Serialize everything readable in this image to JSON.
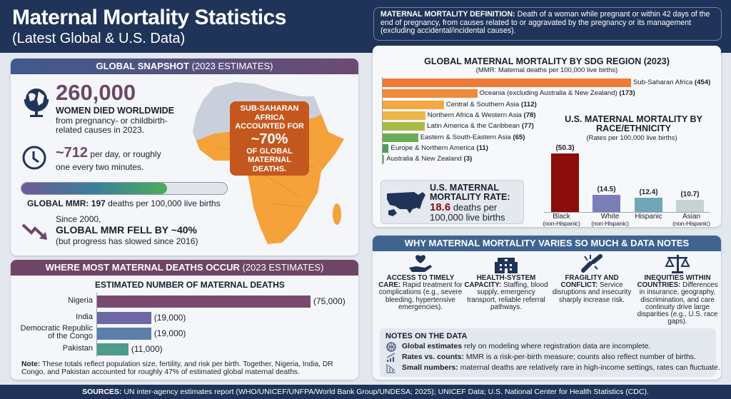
{
  "header": {
    "title": "Maternal Mortality Statistics",
    "subtitle": "(Latest Global & U.S. Data)"
  },
  "definition": {
    "label": "MATERNAL MORTALITY DEFINITION:",
    "text": "Death of a woman while pregnant or within 42 days of the end of pregnancy, from causes related to or aggravated by the pregnancy or its management (excluding accidental/incidental causes)."
  },
  "snapshot": {
    "heading_bold": "GLOBAL SNAPSHOT",
    "heading_rest": "(2023 ESTIMATES)",
    "deaths_number": "260,000",
    "deaths_label": "WOMEN DIED WORLDWIDE",
    "deaths_desc_1": "from pregnancy- or childbirth-",
    "deaths_desc_2": "related causes in 2023.",
    "per_day_number": "~712",
    "per_day_text": "per day, or roughly",
    "per_day_text_2": "one every two minutes.",
    "mmr_bar_fill": 0.71,
    "mmr_label": "GLOBAL MMR:",
    "mmr_value": "197",
    "mmr_unit": "deaths per 100,000 live births",
    "trend_1": "Since 2000,",
    "trend_2": "GLOBAL MMR FELL BY ~40%",
    "trend_3": "(but progress has slowed since 2016)",
    "callout": [
      "SUB-SAHARAN",
      "AFRICA",
      "ACCOUNTED FOR",
      "~70%",
      "OF GLOBAL",
      "MATERNAL",
      "DEATHS."
    ],
    "colors": {
      "map_orange": "#f5a23b",
      "map_grey": "#c9d0db",
      "callout": "#c4571e"
    }
  },
  "deaths_panel": {
    "heading_bold": "WHERE MOST MATERNAL DEATHS OCCUR",
    "heading_rest": "(2023 ESTIMATES)",
    "note_label": "Note:",
    "note_text": "These totals reflect population size, fertility, and risk per birth. Together, Nigeria, India, DR Congo, and Pakistan accounted for roughly 47% of estimated global maternal deaths."
  },
  "us_rate": {
    "line1": "U.S. MATERNAL",
    "line2": "MORTALITY RATE:",
    "value": "18.6",
    "unit1": "deaths per",
    "unit2": "100,000 live births"
  },
  "why": {
    "heading": "WHY MATERNAL MORTALITY VARIES SO MUCH & DATA NOTES",
    "factors": [
      {
        "icon": "heart-hand-icon",
        "title": "ACCESS TO TIMELY CARE:",
        "text": "Rapid treatment for complications (e.g., severe bleeding, hypertensive emergencies)."
      },
      {
        "icon": "hospital-icon",
        "title": "HEALTH-SYSTEM CAPACITY:",
        "text": "Staffing, blood supply, emergency transport, reliable referral pathways."
      },
      {
        "icon": "broken-chain-icon",
        "title": "FRAGILITY AND CONFLICT:",
        "text": "Service disruptions and insecurity sharply increase risk."
      },
      {
        "icon": "scales-icon",
        "title": "INEQUITIES WITHIN COUNTRIES:",
        "text": "Differences in insurance, geography, discrimination, and care continuity drive large disparities (e.g., U.S. race gaps)."
      }
    ],
    "notes_title": "NOTES ON THE DATA",
    "notes": [
      {
        "icon": "globe-icon",
        "bold": "Global estimates",
        "text": "rely on modeling where registration data are incomplete."
      },
      {
        "icon": "chart-up-icon",
        "bold": "Rates vs. counts:",
        "text": "MMR is a risk-per-birth measure; counts also reflect number of births."
      },
      {
        "icon": "chart-down-icon",
        "bold": "Small numbers:",
        "text": "maternal deaths are relatively rare in high-income settings, rates can fluctuate."
      }
    ]
  },
  "footer": {
    "label": "SOURCES:",
    "text": "UN inter-agency estimates report (WHO/UNICEF/UNFPA/World Bank Group/UNDESA; 2025); UNICEF Data; U.S. National Center for Health Statistics (CDC)."
  },
  "chart_data": [
    {
      "type": "bar",
      "orientation": "horizontal",
      "title": "GLOBAL MATERNAL MORTALITY BY SDG REGION (2023)",
      "subtitle": "(MMR: Maternal deaths per 100,000 live births)",
      "categories": [
        "Sub-Saharan Africa",
        "Oceania (excluding Australia & New Zealand)",
        "Central & Southern Asia",
        "Northern Africa & Western Asia",
        "Latin America & the Caribbean",
        "Eastern & South-Eastern Asia",
        "Europe & Northern America",
        "Australia & New Zealand"
      ],
      "values": [
        454,
        173,
        112,
        78,
        77,
        65,
        11,
        3
      ],
      "labels": [
        "(454)",
        "(173)",
        "(112)",
        "(78)",
        "(77)",
        "(65)",
        "(11)",
        "(3)"
      ],
      "colors": [
        "#ee7a35",
        "#f08a3c",
        "#f4a742",
        "#ecb64a",
        "#a9bb45",
        "#6bab55",
        "#4e9e56",
        "#86a58d"
      ]
    },
    {
      "type": "bar",
      "orientation": "vertical",
      "title": "U.S. MATERNAL MORTALITY BY RACE/ETHNICITY",
      "subtitle": "(Rates per 100,000 live births)",
      "categories": [
        [
          "Black",
          "(non-Hispanic)"
        ],
        [
          "White",
          "(non-Hispanic)"
        ],
        [
          "Hispanic",
          ""
        ],
        [
          "Asian",
          "(non-Hispanic)"
        ]
      ],
      "values": [
        50.3,
        14.5,
        12.4,
        10.7
      ],
      "labels": [
        "(50.3)",
        "(14.5)",
        "(12.4)",
        "(10.7)"
      ],
      "colors": [
        "#8b0d0d",
        "#7b7fb8",
        "#6fa7b8",
        "#c5d3d5"
      ]
    },
    {
      "type": "bar",
      "orientation": "horizontal",
      "title": "ESTIMATED NUMBER OF MATERNAL DEATHS",
      "categories": [
        "Nigeria",
        "India",
        "Democratic Republic of the Congo",
        "Pakistan"
      ],
      "category_lines": [
        [
          "Nigeria"
        ],
        [
          "India"
        ],
        [
          "Democratic Republic",
          "of the Congo"
        ],
        [
          "Pakistan"
        ]
      ],
      "values": [
        75000,
        19000,
        19000,
        11000
      ],
      "labels": [
        "(75,000)",
        "(19,000)",
        "(19,000)",
        "(11,000)"
      ],
      "colors": [
        "#7a4a6e",
        "#6e68a4",
        "#5a7fab",
        "#4e9a8c"
      ]
    }
  ]
}
